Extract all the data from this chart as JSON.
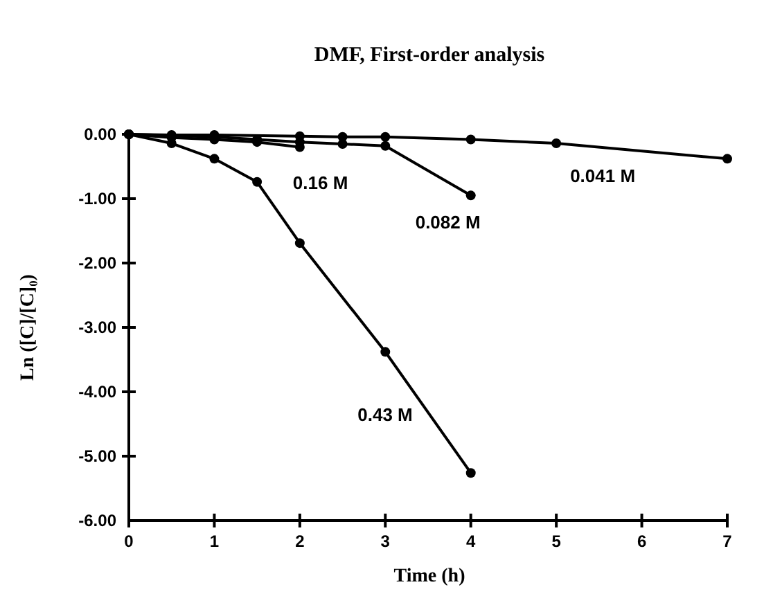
{
  "chart_data": {
    "type": "line",
    "title": "DMF, First-order analysis",
    "xlabel": "Time (h)",
    "ylabel": "Ln ([C]/[C]₀)",
    "xlim": [
      0,
      7
    ],
    "xticks": [
      0,
      1,
      2,
      3,
      4,
      5,
      6,
      7
    ],
    "ylim": [
      -6,
      0
    ],
    "yticks": [
      {
        "value": 0,
        "label": "0.00"
      },
      {
        "value": -1,
        "label": "-1.00"
      },
      {
        "value": -2,
        "label": "-2.00"
      },
      {
        "value": -3,
        "label": "-3.00"
      },
      {
        "value": -4,
        "label": "-4.00"
      },
      {
        "value": -5,
        "label": "-5.00"
      },
      {
        "value": -6,
        "label": "-6.00"
      }
    ],
    "grid": false,
    "legend": false,
    "marker": "circle",
    "line_style": "solid",
    "series": [
      {
        "name": "0.43 M",
        "color": "#000000",
        "x": [
          0,
          0.5,
          1,
          1.5,
          2,
          3,
          4
        ],
        "values": [
          0,
          -0.14,
          -0.38,
          -0.74,
          -1.69,
          -3.38,
          -5.26
        ]
      },
      {
        "name": "0.16 M",
        "color": "#000000",
        "x": [
          0,
          0.5,
          1,
          1.5,
          2
        ],
        "values": [
          0,
          -0.05,
          -0.08,
          -0.12,
          -0.2
        ]
      },
      {
        "name": "0.082 M",
        "color": "#000000",
        "x": [
          0,
          0.5,
          1,
          1.5,
          2,
          2.5,
          3,
          4
        ],
        "values": [
          0,
          -0.02,
          -0.04,
          -0.08,
          -0.12,
          -0.15,
          -0.18,
          -0.95
        ]
      },
      {
        "name": "0.041 M",
        "color": "#000000",
        "x": [
          0,
          0.5,
          1,
          2,
          2.5,
          3,
          4,
          5,
          7
        ],
        "values": [
          0,
          -0.01,
          -0.01,
          -0.03,
          -0.04,
          -0.04,
          -0.08,
          -0.14,
          -0.38
        ]
      }
    ]
  }
}
